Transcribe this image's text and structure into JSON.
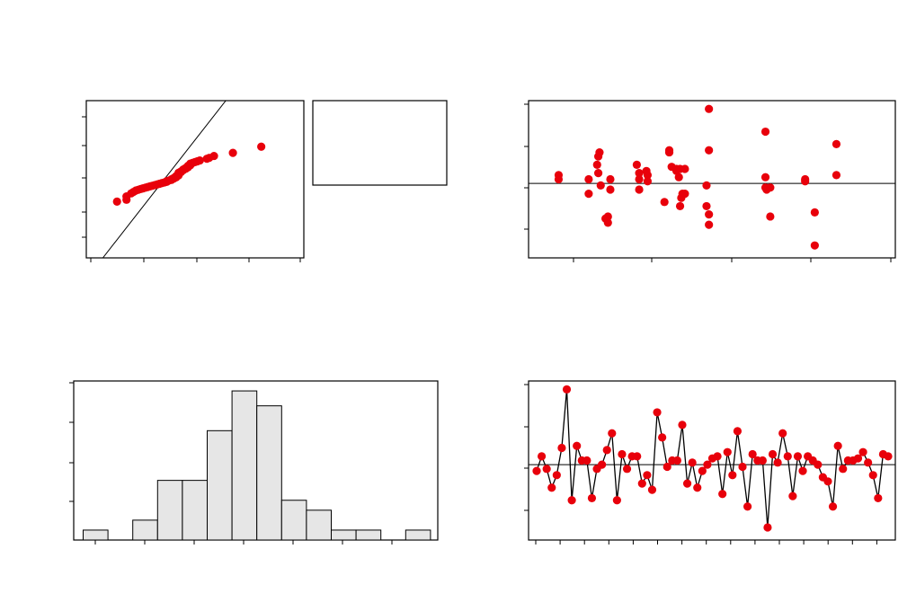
{
  "chart_data": [
    {
      "name": "normal-probability-plot",
      "type": "scatter",
      "title": "",
      "xlabel": "",
      "ylabel": "",
      "xlim": [
        -0.34,
        0.58
      ],
      "ylim": [
        0.1,
        99.9
      ],
      "fit_line": [
        [
          -0.27,
          0.1
        ],
        [
          0.25,
          99.9
        ]
      ],
      "points": [
        [
          -0.21,
          19
        ],
        [
          -0.17,
          25
        ],
        [
          -0.17,
          21
        ],
        [
          -0.15,
          29
        ],
        [
          -0.14,
          31
        ],
        [
          -0.13,
          33
        ],
        [
          -0.12,
          34
        ],
        [
          -0.11,
          35
        ],
        [
          -0.1,
          36
        ],
        [
          -0.09,
          37
        ],
        [
          -0.08,
          38
        ],
        [
          -0.07,
          39
        ],
        [
          -0.06,
          40
        ],
        [
          -0.05,
          41
        ],
        [
          -0.04,
          42
        ],
        [
          -0.03,
          43
        ],
        [
          -0.02,
          44
        ],
        [
          -0.01,
          45
        ],
        [
          0.0,
          46
        ],
        [
          0.0,
          47
        ],
        [
          0.01,
          48
        ],
        [
          0.02,
          49
        ],
        [
          0.02,
          50
        ],
        [
          0.03,
          51
        ],
        [
          0.03,
          52
        ],
        [
          0.04,
          53
        ],
        [
          0.04,
          54
        ],
        [
          0.04,
          55
        ],
        [
          0.05,
          56
        ],
        [
          0.05,
          58
        ],
        [
          0.05,
          60
        ],
        [
          0.06,
          61
        ],
        [
          0.06,
          62
        ],
        [
          0.07,
          64
        ],
        [
          0.07,
          65
        ],
        [
          0.08,
          66
        ],
        [
          0.08,
          67
        ],
        [
          0.09,
          68
        ],
        [
          0.09,
          70
        ],
        [
          0.1,
          71
        ],
        [
          0.1,
          73
        ],
        [
          0.11,
          74
        ],
        [
          0.12,
          75
        ],
        [
          0.13,
          76
        ],
        [
          0.14,
          77
        ],
        [
          0.17,
          79
        ],
        [
          0.18,
          80
        ],
        [
          0.2,
          82
        ],
        [
          0.28,
          85
        ],
        [
          0.4,
          90
        ]
      ],
      "legend_box": "empty",
      "color": "#e8000b"
    },
    {
      "name": "residuals-vs-fits",
      "type": "scatter",
      "title": "",
      "xlabel": "",
      "ylabel": "",
      "xlim": [
        4.7,
        7.75
      ],
      "ylim": [
        -0.18,
        0.2
      ],
      "reference_line": 0,
      "points": [
        [
          4.95,
          0.02
        ],
        [
          4.95,
          0.01
        ],
        [
          5.2,
          0.01
        ],
        [
          5.2,
          -0.025
        ],
        [
          5.27,
          0.045
        ],
        [
          5.28,
          0.065
        ],
        [
          5.29,
          0.075
        ],
        [
          5.28,
          0.025
        ],
        [
          5.3,
          -0.005
        ],
        [
          5.34,
          -0.085
        ],
        [
          5.36,
          -0.08
        ],
        [
          5.36,
          -0.095
        ],
        [
          5.38,
          0.01
        ],
        [
          5.38,
          -0.015
        ],
        [
          5.6,
          0.045
        ],
        [
          5.62,
          0.025
        ],
        [
          5.62,
          0.01
        ],
        [
          5.62,
          -0.015
        ],
        [
          5.68,
          0.03
        ],
        [
          5.69,
          0.02
        ],
        [
          5.69,
          0.005
        ],
        [
          5.83,
          -0.045
        ],
        [
          5.87,
          0.08
        ],
        [
          5.87,
          0.075
        ],
        [
          5.89,
          0.04
        ],
        [
          5.93,
          0.03
        ],
        [
          5.93,
          0.035
        ],
        [
          5.96,
          0.035
        ],
        [
          5.95,
          0.015
        ],
        [
          5.96,
          -0.055
        ],
        [
          5.97,
          -0.035
        ],
        [
          5.98,
          -0.025
        ],
        [
          6.0,
          -0.025
        ],
        [
          6.0,
          0.035
        ],
        [
          6.18,
          -0.005
        ],
        [
          6.2,
          0.18
        ],
        [
          6.2,
          0.08
        ],
        [
          6.18,
          -0.055
        ],
        [
          6.2,
          -0.075
        ],
        [
          6.2,
          -0.1
        ],
        [
          6.67,
          0.125
        ],
        [
          6.67,
          0.015
        ],
        [
          6.67,
          -0.01
        ],
        [
          6.68,
          -0.015
        ],
        [
          6.71,
          -0.01
        ],
        [
          6.71,
          -0.08
        ],
        [
          7.0,
          0.01
        ],
        [
          7.0,
          0.005
        ],
        [
          7.08,
          -0.07
        ],
        [
          7.08,
          -0.15
        ],
        [
          7.26,
          0.095
        ],
        [
          7.26,
          0.02
        ]
      ],
      "color": "#e8000b"
    },
    {
      "name": "residual-histogram",
      "type": "bar",
      "title": "",
      "xlabel": "",
      "ylabel": "",
      "ylim": [
        0,
        16
      ],
      "values": [
        1,
        0,
        2,
        6,
        6,
        11,
        15,
        13.5,
        4,
        3,
        1,
        1,
        0,
        1
      ],
      "bar_fill": "#e6e6e6"
    },
    {
      "name": "residuals-vs-order",
      "type": "line",
      "title": "",
      "xlabel": "",
      "ylabel": "",
      "xlim": [
        0,
        53
      ],
      "ylim": [
        -0.18,
        0.2
      ],
      "reference_line": 0,
      "values": [
        -0.015,
        0.02,
        -0.01,
        -0.055,
        -0.025,
        0.04,
        0.18,
        -0.085,
        0.045,
        0.01,
        0.01,
        -0.08,
        -0.01,
        0.0,
        0.035,
        0.075,
        -0.085,
        0.025,
        -0.01,
        0.02,
        0.02,
        -0.045,
        -0.025,
        -0.06,
        0.125,
        0.065,
        -0.005,
        0.01,
        0.01,
        0.095,
        -0.045,
        0.005,
        -0.055,
        -0.015,
        0.0,
        0.015,
        0.02,
        -0.07,
        0.03,
        -0.025,
        0.08,
        -0.005,
        -0.1,
        0.025,
        0.01,
        0.01,
        -0.15,
        0.025,
        0.005,
        0.075,
        0.02,
        -0.075,
        0.02,
        -0.015,
        0.02,
        0.01,
        0.0,
        -0.03,
        -0.04,
        -0.1,
        0.045,
        -0.01,
        0.01,
        0.01,
        0.015,
        0.03,
        0.005,
        -0.025,
        -0.08,
        0.025,
        0.02
      ],
      "color": "#e8000b"
    }
  ]
}
